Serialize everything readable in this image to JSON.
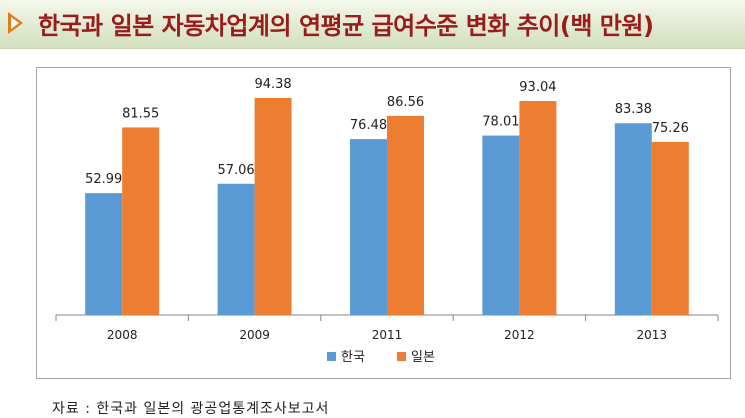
{
  "header": {
    "title": "한국과 일본 자동차업계의 연평균 급여수준 변화 추이(백 만원)",
    "marker_color": "#e47a1c",
    "title_color": "#9b1b1b"
  },
  "chart_data": {
    "type": "bar",
    "categories": [
      "2008",
      "2009",
      "2011",
      "2012",
      "2013"
    ],
    "series": [
      {
        "name": "한국",
        "values": [
          52.99,
          57.06,
          76.48,
          78.01,
          83.38
        ],
        "color": "#5b9bd5"
      },
      {
        "name": "일본",
        "values": [
          81.55,
          94.38,
          86.56,
          93.04,
          75.26
        ],
        "color": "#ed7d31"
      }
    ],
    "value_labels": [
      [
        "52.99",
        "57.06",
        "76.48",
        "78.01",
        "83.38"
      ],
      [
        "81.55",
        "94.38",
        "86.56",
        "93.04",
        "75.26"
      ]
    ],
    "ylim": [
      0,
      100
    ],
    "grid": false,
    "legend_position": "bottom"
  },
  "footer": {
    "source": "자료 : 한국과 일본의 광공업통계조사보고서"
  }
}
